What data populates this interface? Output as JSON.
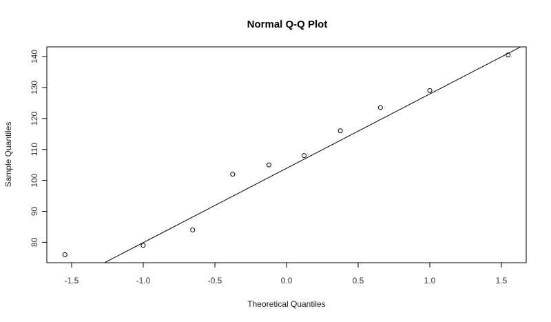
{
  "chart_data": {
    "type": "scatter",
    "title": "Normal Q-Q Plot",
    "xlabel": "Theoretical Quantiles",
    "ylabel": "Sample Quantiles",
    "xlim": [
      -1.65,
      1.68
    ],
    "ylim": [
      73.4,
      143.0
    ],
    "xticks": [
      -1.5,
      -1.0,
      -0.5,
      0.0,
      0.5,
      1.0,
      1.5
    ],
    "xtick_labels": [
      "-1.5",
      "-1.0",
      "-0.5",
      "0.0",
      "0.5",
      "1.0",
      "1.5"
    ],
    "yticks": [
      80,
      90,
      100,
      110,
      120,
      130,
      140
    ],
    "ytick_labels": [
      "80",
      "90",
      "100",
      "110",
      "120",
      "130",
      "140"
    ],
    "grid": false,
    "legend": null,
    "series": [
      {
        "name": "sample",
        "marker": "open-circle",
        "x": [
          -1.5466,
          -1.0003,
          -0.6554,
          -0.3758,
          -0.1226,
          0.1226,
          0.3758,
          0.6554,
          1.0003,
          1.5466
        ],
        "y": [
          76,
          79,
          84,
          102,
          105,
          108,
          116,
          123.5,
          129,
          140.5
        ]
      }
    ],
    "reference_line": {
      "intercept": 103.9,
      "slope": 24.0
    }
  },
  "colors": {
    "axis": "#000000",
    "points": "#000000",
    "line": "#000000",
    "background": "#ffffff"
  }
}
